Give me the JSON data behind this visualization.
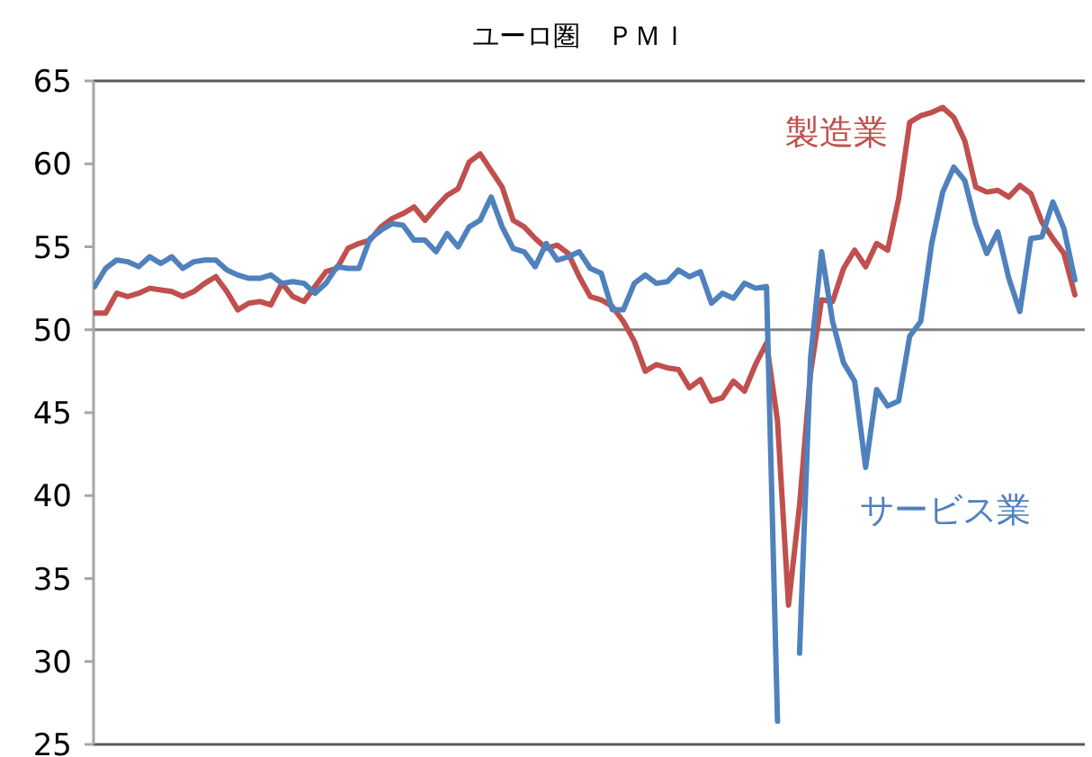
{
  "chart_data": {
    "type": "line",
    "title": "ユーロ圏　ＰＭＩ",
    "categories": [
      null,
      null,
      null,
      null,
      null,
      null,
      null,
      null,
      null,
      null,
      null,
      null,
      null,
      null,
      null,
      null,
      null,
      null,
      null,
      null,
      null,
      null,
      null,
      null,
      null,
      null,
      null,
      null,
      null,
      null,
      null,
      null,
      null,
      null,
      null,
      null,
      null,
      null,
      null,
      null,
      null,
      null,
      null,
      null,
      null,
      null,
      null,
      null,
      null,
      null,
      null,
      null,
      null,
      null,
      null,
      null,
      null,
      null,
      null,
      null,
      null,
      null,
      null,
      null,
      null,
      null,
      null,
      null,
      null,
      null,
      null,
      null,
      null,
      null,
      null,
      null,
      null,
      null,
      null,
      null,
      null,
      null,
      null,
      null,
      null,
      null,
      null,
      null,
      null,
      null
    ],
    "series": [
      {
        "name": "製造業",
        "color": "#c0504d",
        "values": [
          51.0,
          51.0,
          52.2,
          52.0,
          52.2,
          52.5,
          52.4,
          52.3,
          52.0,
          52.3,
          52.8,
          53.2,
          52.3,
          51.2,
          51.6,
          51.7,
          51.5,
          52.8,
          52.0,
          51.7,
          52.6,
          53.5,
          53.7,
          54.9,
          55.2,
          55.4,
          56.2,
          56.7,
          57.0,
          57.4,
          56.6,
          57.4,
          58.1,
          58.5,
          60.1,
          60.6,
          59.6,
          58.6,
          56.6,
          56.2,
          55.5,
          54.9,
          55.1,
          54.6,
          53.2,
          52.0,
          51.8,
          51.4,
          50.5,
          49.3,
          47.5,
          47.9,
          47.7,
          47.6,
          46.5,
          47.0,
          45.7,
          45.9,
          46.9,
          46.3,
          47.9,
          49.2,
          44.5,
          33.4,
          39.4,
          47.4,
          51.8,
          51.7,
          53.7,
          54.8,
          53.8,
          55.2,
          54.8,
          57.9,
          62.5,
          62.9,
          63.1,
          63.4,
          62.8,
          61.4,
          58.6,
          58.3,
          58.4,
          58.0,
          58.7,
          58.2,
          56.5,
          55.5,
          54.6,
          52.1
        ]
      },
      {
        "name": "サービス業",
        "color": "#4f81bd",
        "values": [
          52.6,
          53.7,
          54.2,
          54.1,
          53.8,
          54.4,
          54.0,
          54.4,
          53.7,
          54.1,
          54.2,
          54.2,
          53.6,
          53.3,
          53.1,
          53.1,
          53.3,
          52.8,
          52.9,
          52.8,
          52.2,
          52.8,
          53.8,
          53.7,
          53.7,
          55.5,
          56.0,
          56.4,
          56.3,
          55.4,
          55.4,
          54.7,
          55.8,
          55.0,
          56.2,
          56.6,
          58.0,
          56.2,
          54.9,
          54.7,
          53.8,
          55.2,
          54.2,
          54.4,
          54.7,
          53.7,
          53.4,
          51.2,
          51.2,
          52.8,
          53.3,
          52.8,
          52.9,
          53.6,
          53.2,
          53.5,
          51.6,
          52.2,
          51.9,
          52.8,
          52.5,
          52.6,
          26.4,
          null,
          30.5,
          48.3,
          54.7,
          50.5,
          48.0,
          46.9,
          41.7,
          46.4,
          45.4,
          45.7,
          49.6,
          50.5,
          55.2,
          58.3,
          59.8,
          59.0,
          56.4,
          54.6,
          55.9,
          53.1,
          51.1,
          55.5,
          55.6,
          57.7,
          56.1,
          53.0
        ]
      }
    ],
    "ylim": [
      25,
      65
    ],
    "yticks": [
      25,
      30,
      35,
      40,
      45,
      50,
      55,
      60,
      65
    ],
    "ref_lines": [
      {
        "axis": "y",
        "value": 50,
        "color": "#808080"
      }
    ],
    "grid": false,
    "tick_labels": "y"
  }
}
